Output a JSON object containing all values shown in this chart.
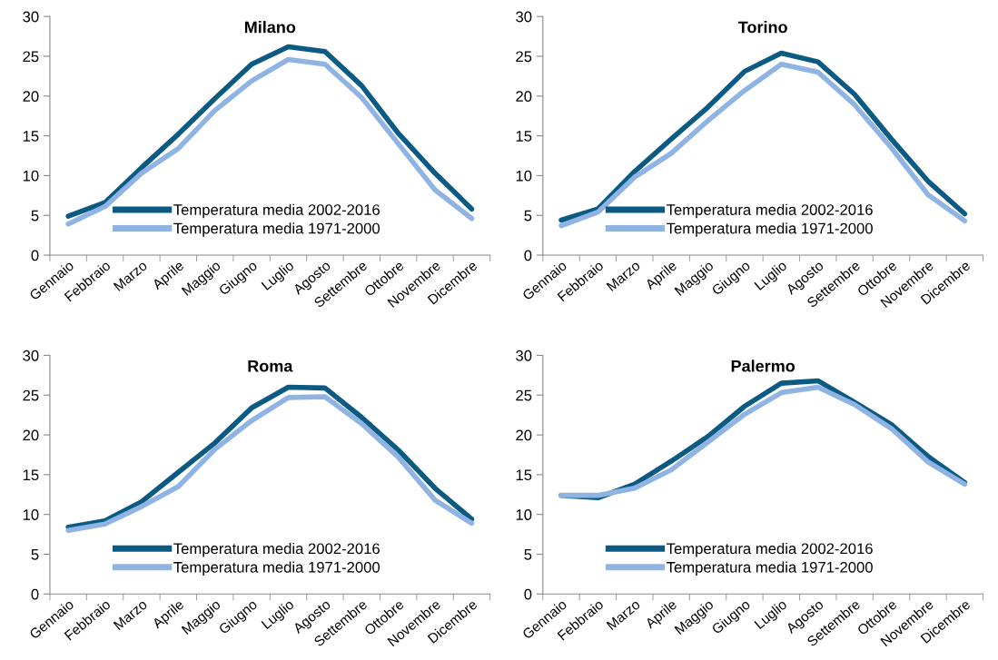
{
  "chart_data": [
    {
      "type": "line",
      "title": "Milano",
      "categories": [
        "Gennaio",
        "Febbraio",
        "Marzo",
        "Aprile",
        "Maggio",
        "Giugno",
        "Luglio",
        "Agosto",
        "Settembre",
        "Ottobre",
        "Novembre",
        "Dicembre"
      ],
      "ylim": [
        0,
        30
      ],
      "yticks": [
        0,
        5,
        10,
        15,
        20,
        25,
        30
      ],
      "grid": false,
      "legend": "bottom",
      "marker": "none",
      "line_style": "solid",
      "series": [
        {
          "name": "Temperatura media 2002-2016",
          "color": "#0b5a84",
          "values": [
            4.9,
            6.6,
            11,
            15.2,
            19.7,
            24,
            26.2,
            25.6,
            21.3,
            15.3,
            10.3,
            5.8
          ]
        },
        {
          "name": "Temperatura media 1971-2000",
          "color": "#8fb4e3",
          "values": [
            3.9,
            6.1,
            10.3,
            13.4,
            18.2,
            21.9,
            24.6,
            24,
            19.8,
            14,
            8.2,
            4.6
          ]
        }
      ]
    },
    {
      "type": "line",
      "title": "Torino",
      "categories": [
        "Gennaio",
        "Febbraio",
        "Marzo",
        "Aprile",
        "Maggio",
        "Giugno",
        "Luglio",
        "Agosto",
        "Settembre",
        "Ottobre",
        "Novembre",
        "Dicembre"
      ],
      "ylim": [
        0,
        30
      ],
      "yticks": [
        0,
        5,
        10,
        15,
        20,
        25,
        30
      ],
      "grid": false,
      "legend": "bottom",
      "marker": "none",
      "line_style": "solid",
      "series": [
        {
          "name": "Temperatura media 2002-2016",
          "color": "#0b5a84",
          "values": [
            4.4,
            5.8,
            10.5,
            14.6,
            18.6,
            23.1,
            25.4,
            24.3,
            20.2,
            14.6,
            9.3,
            5.2
          ]
        },
        {
          "name": "Temperatura media 1971-2000",
          "color": "#8fb4e3",
          "values": [
            3.7,
            5.4,
            9.8,
            12.8,
            16.9,
            20.7,
            24,
            23,
            18.9,
            13.5,
            7.6,
            4.3
          ]
        }
      ]
    },
    {
      "type": "line",
      "title": "Roma",
      "categories": [
        "Gennaio",
        "Febbraio",
        "Marzo",
        "Aprile",
        "Maggio",
        "Giugno",
        "Luglio",
        "Agosto",
        "Settembre",
        "Ottobre",
        "Novembre",
        "Dicembre"
      ],
      "ylim": [
        0,
        30
      ],
      "yticks": [
        0,
        5,
        10,
        15,
        20,
        25,
        30
      ],
      "grid": false,
      "legend": "bottom",
      "marker": "none",
      "line_style": "solid",
      "series": [
        {
          "name": "Temperatura media 2002-2016",
          "color": "#0b5a84",
          "values": [
            8.4,
            9.2,
            11.6,
            15.3,
            19,
            23.4,
            26,
            25.9,
            22.2,
            18.1,
            13.3,
            9.4
          ]
        },
        {
          "name": "Temperatura media 1971-2000",
          "color": "#8fb4e3",
          "values": [
            8,
            8.8,
            11,
            13.5,
            18.2,
            21.8,
            24.7,
            24.8,
            21.4,
            17.2,
            11.8,
            8.9
          ]
        }
      ]
    },
    {
      "type": "line",
      "title": "Palermo",
      "categories": [
        "Gennaio",
        "Febbraio",
        "Marzo",
        "Aprile",
        "Maggio",
        "Giugno",
        "Luglio",
        "Agosto",
        "Settembre",
        "Ottobre",
        "Novembre",
        "Dicembre"
      ],
      "ylim": [
        0,
        30
      ],
      "yticks": [
        0,
        5,
        10,
        15,
        20,
        25,
        30
      ],
      "grid": false,
      "legend": "bottom",
      "marker": "none",
      "line_style": "solid",
      "series": [
        {
          "name": "Temperatura media 2002-2016",
          "color": "#0b5a84",
          "values": [
            12.4,
            12.1,
            13.8,
            16.7,
            19.8,
            23.6,
            26.5,
            26.8,
            24.1,
            21.3,
            17.3,
            14
          ]
        },
        {
          "name": "Temperatura media 1971-2000",
          "color": "#8fb4e3",
          "values": [
            12.4,
            12.4,
            13.3,
            15.6,
            19.1,
            22.6,
            25.3,
            26,
            23.8,
            20.8,
            16.6,
            13.8
          ]
        }
      ]
    }
  ]
}
